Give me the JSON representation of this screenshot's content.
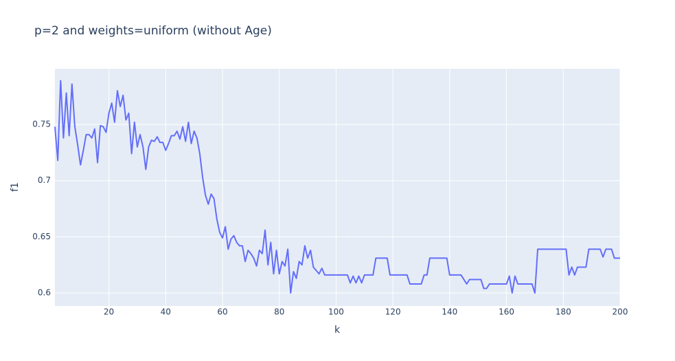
{
  "chart_data": {
    "type": "line",
    "title": "p=2 and weights=uniform (without Age)",
    "x_label": "k",
    "y_label": "f1",
    "color": "#636efa",
    "grid": true,
    "x": [
      1,
      2,
      3,
      4,
      5,
      6,
      7,
      8,
      9,
      10,
      11,
      12,
      13,
      14,
      15,
      16,
      17,
      18,
      19,
      20,
      21,
      22,
      23,
      24,
      25,
      26,
      27,
      28,
      29,
      30,
      31,
      32,
      33,
      34,
      35,
      36,
      37,
      38,
      39,
      40,
      41,
      42,
      43,
      44,
      45,
      46,
      47,
      48,
      49,
      50,
      51,
      52,
      53,
      54,
      55,
      56,
      57,
      58,
      59,
      60,
      61,
      62,
      63,
      64,
      65,
      66,
      67,
      68,
      69,
      70,
      71,
      72,
      73,
      74,
      75,
      76,
      77,
      78,
      79,
      80,
      81,
      82,
      83,
      84,
      85,
      86,
      87,
      88,
      89,
      90,
      91,
      92,
      93,
      94,
      95,
      96,
      97,
      98,
      99,
      100,
      101,
      102,
      103,
      104,
      105,
      106,
      107,
      108,
      109,
      110,
      111,
      112,
      113,
      114,
      115,
      116,
      117,
      118,
      119,
      120,
      121,
      122,
      123,
      124,
      125,
      126,
      127,
      128,
      129,
      130,
      131,
      132,
      133,
      134,
      135,
      136,
      137,
      138,
      139,
      140,
      141,
      142,
      143,
      144,
      145,
      146,
      147,
      148,
      149,
      150,
      151,
      152,
      153,
      154,
      155,
      156,
      157,
      158,
      159,
      160,
      161,
      162,
      163,
      164,
      165,
      166,
      167,
      168,
      169,
      170,
      171,
      172,
      173,
      174,
      175,
      176,
      177,
      178,
      179,
      180,
      181,
      182,
      183,
      184,
      185,
      186,
      187,
      188,
      189,
      190,
      191,
      192,
      193,
      194,
      195,
      196,
      197,
      198,
      199,
      200
    ],
    "values": [
      0.748,
      0.718,
      0.789,
      0.738,
      0.778,
      0.74,
      0.786,
      0.748,
      0.732,
      0.714,
      0.727,
      0.741,
      0.741,
      0.738,
      0.746,
      0.716,
      0.749,
      0.748,
      0.743,
      0.76,
      0.769,
      0.752,
      0.78,
      0.766,
      0.776,
      0.754,
      0.76,
      0.724,
      0.752,
      0.73,
      0.741,
      0.73,
      0.71,
      0.73,
      0.736,
      0.735,
      0.739,
      0.734,
      0.734,
      0.727,
      0.733,
      0.74,
      0.74,
      0.744,
      0.737,
      0.748,
      0.735,
      0.752,
      0.733,
      0.744,
      0.738,
      0.724,
      0.703,
      0.687,
      0.679,
      0.688,
      0.684,
      0.666,
      0.654,
      0.649,
      0.659,
      0.639,
      0.648,
      0.651,
      0.645,
      0.642,
      0.642,
      0.628,
      0.638,
      0.635,
      0.631,
      0.624,
      0.638,
      0.635,
      0.656,
      0.625,
      0.645,
      0.617,
      0.638,
      0.617,
      0.628,
      0.624,
      0.639,
      0.6,
      0.619,
      0.613,
      0.628,
      0.625,
      0.642,
      0.631,
      0.638,
      0.623,
      0.62,
      0.617,
      0.622,
      0.616,
      0.616,
      0.616,
      0.616,
      0.616,
      0.616,
      0.616,
      0.616,
      0.616,
      0.609,
      0.615,
      0.609,
      0.615,
      0.609,
      0.616,
      0.616,
      0.616,
      0.616,
      0.631,
      0.631,
      0.631,
      0.631,
      0.631,
      0.616,
      0.616,
      0.616,
      0.616,
      0.616,
      0.616,
      0.616,
      0.608,
      0.608,
      0.608,
      0.608,
      0.608,
      0.616,
      0.616,
      0.631,
      0.631,
      0.631,
      0.631,
      0.631,
      0.631,
      0.631,
      0.616,
      0.616,
      0.616,
      0.616,
      0.616,
      0.612,
      0.608,
      0.612,
      0.612,
      0.612,
      0.612,
      0.612,
      0.604,
      0.604,
      0.608,
      0.608,
      0.608,
      0.608,
      0.608,
      0.608,
      0.608,
      0.615,
      0.6,
      0.615,
      0.608,
      0.608,
      0.608,
      0.608,
      0.608,
      0.608,
      0.6,
      0.639,
      0.639,
      0.639,
      0.639,
      0.639,
      0.639,
      0.639,
      0.639,
      0.639,
      0.639,
      0.639,
      0.616,
      0.623,
      0.616,
      0.623,
      0.623,
      0.623,
      0.623,
      0.639,
      0.639,
      0.639,
      0.639,
      0.639,
      0.632,
      0.639,
      0.639,
      0.639,
      0.631,
      0.631,
      0.631
    ],
    "xlim": [
      1,
      200
    ],
    "xticks": [
      20,
      40,
      60,
      80,
      100,
      120,
      140,
      160,
      180,
      200
    ],
    "ylim": [
      0.5884,
      0.7996
    ],
    "yticks": [
      0.6,
      0.65,
      0.7,
      0.75
    ]
  }
}
